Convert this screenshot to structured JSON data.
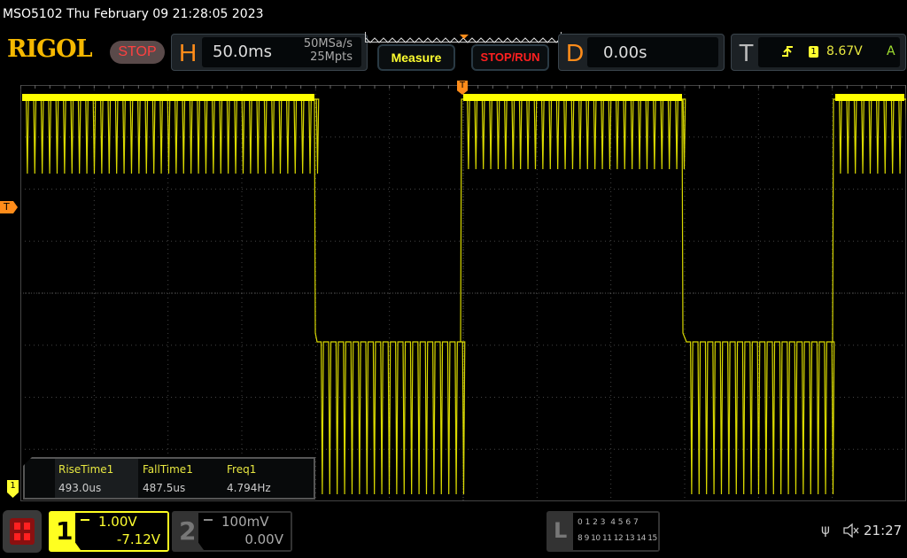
{
  "header": {
    "title": "MSO5102  Thu February 09 21:28:05 2023",
    "logo": "RIGOL",
    "run_state": "STOP"
  },
  "horizontal": {
    "letter": "H",
    "timebase": "50.0ms",
    "sample_rate": "50MSa/s",
    "memory_depth": "25Mpts"
  },
  "buttons": {
    "measure": "Measure",
    "stop_run": "STOP/RUN"
  },
  "delay": {
    "letter": "D",
    "value": "0.00s"
  },
  "trigger": {
    "letter": "T",
    "slope_icon": "rising-edge-icon",
    "source": "1",
    "level": "8.67V",
    "mode": "A",
    "marker": "T"
  },
  "measurements": [
    {
      "name": "RiseTime1",
      "value": "493.0us"
    },
    {
      "name": "FallTime1",
      "value": "487.5us"
    },
    {
      "name": "Freq1",
      "value": "4.794Hz"
    }
  ],
  "channels": [
    {
      "num": "1",
      "scale": "1.00V",
      "offset": "-7.12V",
      "coupling_icon": "dc-coupling-icon",
      "color": "#ffff00",
      "active": true
    },
    {
      "num": "2",
      "scale": "100mV",
      "offset": "0.00V",
      "coupling_icon": "dc-coupling-icon",
      "color": "#888888",
      "active": false
    }
  ],
  "logic": {
    "letter": "L",
    "row1": "0 1 2 3  4 5 6 7",
    "row2": "8 9 10 11 12 13 14 15"
  },
  "status": {
    "time": "21:27",
    "usb_icon": "usb-icon",
    "sound_icon": "speaker-muted-icon"
  },
  "colors": {
    "trace": "#ffff00",
    "accent": "#ff8c1a",
    "grid": "#555555"
  }
}
